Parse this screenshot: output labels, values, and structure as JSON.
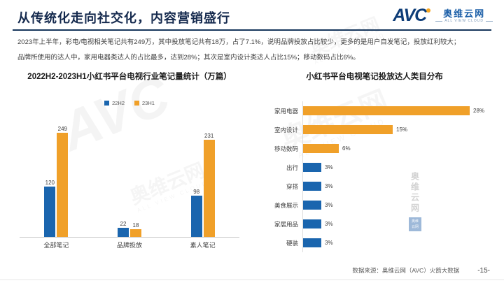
{
  "header": {
    "title": "从传统化走向社交化，内容营销盛行",
    "logo": {
      "avc": "AVC",
      "cn": "奥维云网",
      "en": "ALL VIEW CLOUD"
    }
  },
  "intro": {
    "line1": "2023年上半年，彩电/电视相关笔记共有249万，其中投放笔记共有18万，占了7.1%，说明品牌投放占比较少，更多的是用户自发笔记，投放红利较大；",
    "line2": "品牌所使用的达人中，家用电器类达人的占比最多，达到28%；其次是室内设计类达人占比15%；移动数码占比6%。"
  },
  "chart_data": [
    {
      "type": "bar",
      "orientation": "vertical",
      "title": "2022H2-2023H1小红书平台电视行业笔记量统计（万篇）",
      "categories": [
        "全部笔记",
        "品牌投放",
        "素人笔记"
      ],
      "series": [
        {
          "name": "22H2",
          "color": "#1a65ae",
          "values": [
            120,
            22,
            98
          ]
        },
        {
          "name": "23H1",
          "color": "#f0a029",
          "values": [
            249,
            18,
            231
          ]
        }
      ],
      "ylim": [
        0,
        260
      ],
      "grid": false,
      "legend_position": "top"
    },
    {
      "type": "bar",
      "orientation": "horizontal",
      "title": "小红书平台电视笔记投放达人类目分布",
      "categories": [
        "家用电器",
        "室内设计",
        "移动数码",
        "出行",
        "穿搭",
        "美食展示",
        "家居用品",
        "硬装"
      ],
      "values": [
        28,
        15,
        6,
        3,
        3,
        3,
        3,
        3
      ],
      "unit": "%",
      "bar_colors": [
        "#f0a029",
        "#f0a029",
        "#f0a029",
        "#1a65ae",
        "#1a65ae",
        "#1a65ae",
        "#1a65ae",
        "#1a65ae"
      ],
      "xlim": [
        0,
        30
      ],
      "grid": false
    }
  ],
  "footer": {
    "source": "数据来源：奥维云网（AVC）火箭大数据",
    "page": "-15-"
  },
  "watermark": {
    "avc": "AVC",
    "cn": "奥维云网",
    "en": "ALL VIEW CLOUD"
  },
  "colors": {
    "accent_navy": "#16365c",
    "bar_blue": "#1a65ae",
    "bar_orange": "#f0a029"
  }
}
